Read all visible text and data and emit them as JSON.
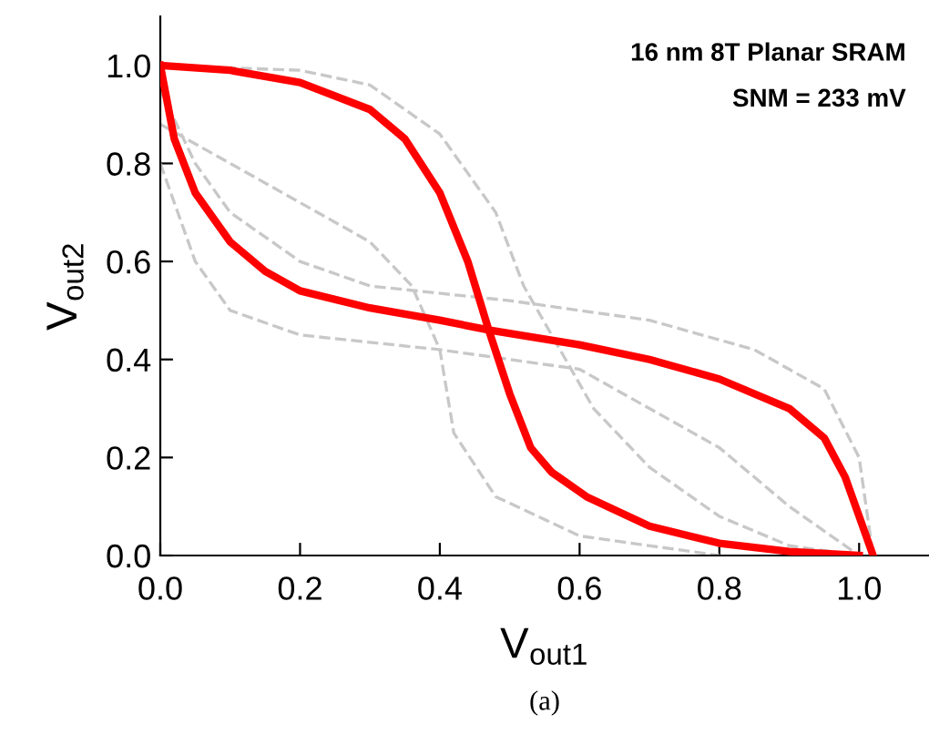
{
  "chart_data": {
    "type": "line",
    "xlabel": "V$_{out1}$",
    "ylabel": "V$_{out2}$",
    "xlim": [
      0,
      1.1
    ],
    "ylim": [
      0,
      1.1
    ],
    "xticks": [
      {
        "value": 0,
        "label": "0.0"
      },
      0.2,
      0.4,
      0.6,
      0.8,
      {
        "value": 1,
        "label": "1.0"
      }
    ],
    "yticks": [
      {
        "value": 0,
        "label": "0.0"
      },
      0.2,
      0.4,
      0.6,
      0.8,
      {
        "value": 1,
        "label": "1.0"
      }
    ],
    "marker": "none",
    "annotations": [
      "16 nm 8T Planar SRAM",
      "SNM = 233 mV",
      "(a)"
    ],
    "series": [
      {
        "color": "#c8c8c8",
        "line_style": "dashed",
        "x": [
          0,
          0.2,
          0.3,
          0.4,
          0.48,
          0.52,
          0.56,
          0.62,
          0.7,
          0.8,
          0.9,
          1.0
        ],
        "values": [
          1.0,
          0.99,
          0.96,
          0.86,
          0.7,
          0.55,
          0.45,
          0.3,
          0.18,
          0.08,
          0.02,
          0.0
        ]
      },
      {
        "color": "#c8c8c8",
        "line_style": "dashed",
        "x": [
          0,
          0.1,
          0.2,
          0.3,
          0.36,
          0.4,
          0.42,
          0.48,
          0.6,
          0.8
        ],
        "values": [
          0.88,
          0.8,
          0.72,
          0.64,
          0.55,
          0.42,
          0.25,
          0.12,
          0.04,
          0.0
        ]
      },
      {
        "color": "#c8c8c8",
        "line_style": "dashed",
        "x": [
          0,
          0.05,
          0.1,
          0.2,
          0.3,
          0.5,
          0.7,
          0.85,
          0.95,
          1.0,
          1.02
        ],
        "values": [
          0.95,
          0.8,
          0.7,
          0.6,
          0.55,
          0.52,
          0.48,
          0.42,
          0.34,
          0.2,
          0.0
        ]
      },
      {
        "color": "#c8c8c8",
        "line_style": "dashed",
        "x": [
          0,
          0.05,
          0.1,
          0.2,
          0.4,
          0.6,
          0.7,
          0.8,
          0.9,
          0.95,
          1.0
        ],
        "values": [
          0.8,
          0.6,
          0.5,
          0.45,
          0.42,
          0.38,
          0.3,
          0.22,
          0.1,
          0.05,
          0.0
        ]
      },
      {
        "color": "#ff0000",
        "line_style": "solid",
        "x": [
          0,
          0.1,
          0.2,
          0.3,
          0.35,
          0.4,
          0.44,
          0.47,
          0.5,
          0.53,
          0.56,
          0.61,
          0.7,
          0.8,
          0.9,
          1.0
        ],
        "values": [
          1.0,
          0.99,
          0.965,
          0.91,
          0.85,
          0.74,
          0.6,
          0.46,
          0.33,
          0.22,
          0.17,
          0.12,
          0.06,
          0.025,
          0.008,
          0.0
        ]
      },
      {
        "color": "#ff0000",
        "line_style": "solid",
        "x": [
          0,
          0.02,
          0.05,
          0.1,
          0.15,
          0.2,
          0.3,
          0.4,
          0.47,
          0.6,
          0.7,
          0.8,
          0.9,
          0.95,
          0.98,
          1.0,
          1.02
        ],
        "values": [
          1.0,
          0.85,
          0.74,
          0.64,
          0.58,
          0.54,
          0.505,
          0.48,
          0.46,
          0.43,
          0.4,
          0.36,
          0.3,
          0.24,
          0.16,
          0.08,
          0.0
        ]
      }
    ]
  }
}
